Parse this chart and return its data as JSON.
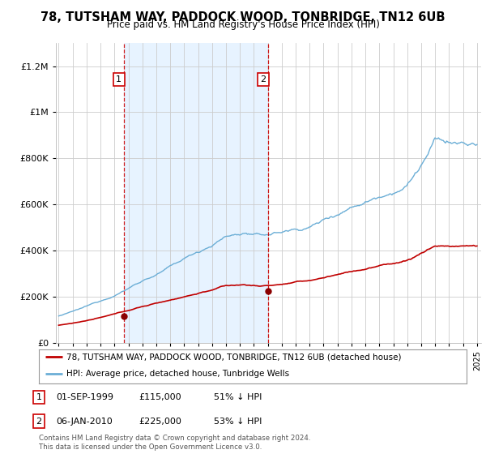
{
  "title": "78, TUTSHAM WAY, PADDOCK WOOD, TONBRIDGE, TN12 6UB",
  "subtitle": "Price paid vs. HM Land Registry's House Price Index (HPI)",
  "hpi_color": "#6baed6",
  "price_color": "#c00000",
  "vline_color": "#cc0000",
  "shade_color": "#ddeeff",
  "background_color": "#ffffff",
  "plot_bg_color": "#ffffff",
  "grid_color": "#cccccc",
  "sale1_date_num": 1999.67,
  "sale1_price": 115000,
  "sale2_date_num": 2010.02,
  "sale2_price": 225000,
  "ylim": [
    0,
    1300000
  ],
  "xlim_start": 1994.8,
  "xlim_end": 2025.3,
  "legend1": "78, TUTSHAM WAY, PADDOCK WOOD, TONBRIDGE, TN12 6UB (detached house)",
  "legend2": "HPI: Average price, detached house, Tunbridge Wells",
  "table_row1": [
    "1",
    "01-SEP-1999",
    "£115,000",
    "51% ↓ HPI"
  ],
  "table_row2": [
    "2",
    "06-JAN-2010",
    "£225,000",
    "53% ↓ HPI"
  ],
  "footnote": "Contains HM Land Registry data © Crown copyright and database right 2024.\nThis data is licensed under the Open Government Licence v3.0."
}
